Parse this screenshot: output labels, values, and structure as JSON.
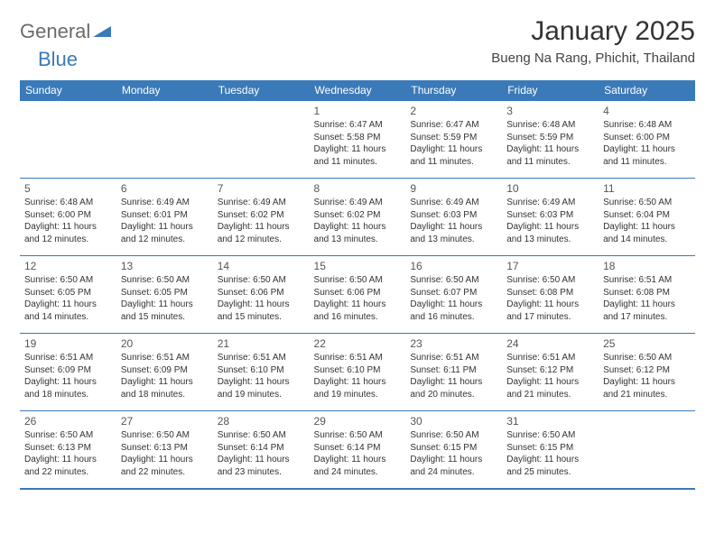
{
  "brand": {
    "general": "General",
    "blue": "Blue"
  },
  "title": "January 2025",
  "location": "Bueng Na Rang, Phichit, Thailand",
  "colors": {
    "accent": "#3a7ab8",
    "text": "#333333",
    "muted": "#6b6b6b",
    "bg": "#ffffff"
  },
  "weekdays": [
    "Sunday",
    "Monday",
    "Tuesday",
    "Wednesday",
    "Thursday",
    "Friday",
    "Saturday"
  ],
  "calendar": {
    "type": "table",
    "columns": 7,
    "rows": 5,
    "start_day_index": 3,
    "days": [
      {
        "n": "1",
        "sr": "Sunrise: 6:47 AM",
        "ss": "Sunset: 5:58 PM",
        "d1": "Daylight: 11 hours",
        "d2": "and 11 minutes."
      },
      {
        "n": "2",
        "sr": "Sunrise: 6:47 AM",
        "ss": "Sunset: 5:59 PM",
        "d1": "Daylight: 11 hours",
        "d2": "and 11 minutes."
      },
      {
        "n": "3",
        "sr": "Sunrise: 6:48 AM",
        "ss": "Sunset: 5:59 PM",
        "d1": "Daylight: 11 hours",
        "d2": "and 11 minutes."
      },
      {
        "n": "4",
        "sr": "Sunrise: 6:48 AM",
        "ss": "Sunset: 6:00 PM",
        "d1": "Daylight: 11 hours",
        "d2": "and 11 minutes."
      },
      {
        "n": "5",
        "sr": "Sunrise: 6:48 AM",
        "ss": "Sunset: 6:00 PM",
        "d1": "Daylight: 11 hours",
        "d2": "and 12 minutes."
      },
      {
        "n": "6",
        "sr": "Sunrise: 6:49 AM",
        "ss": "Sunset: 6:01 PM",
        "d1": "Daylight: 11 hours",
        "d2": "and 12 minutes."
      },
      {
        "n": "7",
        "sr": "Sunrise: 6:49 AM",
        "ss": "Sunset: 6:02 PM",
        "d1": "Daylight: 11 hours",
        "d2": "and 12 minutes."
      },
      {
        "n": "8",
        "sr": "Sunrise: 6:49 AM",
        "ss": "Sunset: 6:02 PM",
        "d1": "Daylight: 11 hours",
        "d2": "and 13 minutes."
      },
      {
        "n": "9",
        "sr": "Sunrise: 6:49 AM",
        "ss": "Sunset: 6:03 PM",
        "d1": "Daylight: 11 hours",
        "d2": "and 13 minutes."
      },
      {
        "n": "10",
        "sr": "Sunrise: 6:49 AM",
        "ss": "Sunset: 6:03 PM",
        "d1": "Daylight: 11 hours",
        "d2": "and 13 minutes."
      },
      {
        "n": "11",
        "sr": "Sunrise: 6:50 AM",
        "ss": "Sunset: 6:04 PM",
        "d1": "Daylight: 11 hours",
        "d2": "and 14 minutes."
      },
      {
        "n": "12",
        "sr": "Sunrise: 6:50 AM",
        "ss": "Sunset: 6:05 PM",
        "d1": "Daylight: 11 hours",
        "d2": "and 14 minutes."
      },
      {
        "n": "13",
        "sr": "Sunrise: 6:50 AM",
        "ss": "Sunset: 6:05 PM",
        "d1": "Daylight: 11 hours",
        "d2": "and 15 minutes."
      },
      {
        "n": "14",
        "sr": "Sunrise: 6:50 AM",
        "ss": "Sunset: 6:06 PM",
        "d1": "Daylight: 11 hours",
        "d2": "and 15 minutes."
      },
      {
        "n": "15",
        "sr": "Sunrise: 6:50 AM",
        "ss": "Sunset: 6:06 PM",
        "d1": "Daylight: 11 hours",
        "d2": "and 16 minutes."
      },
      {
        "n": "16",
        "sr": "Sunrise: 6:50 AM",
        "ss": "Sunset: 6:07 PM",
        "d1": "Daylight: 11 hours",
        "d2": "and 16 minutes."
      },
      {
        "n": "17",
        "sr": "Sunrise: 6:50 AM",
        "ss": "Sunset: 6:08 PM",
        "d1": "Daylight: 11 hours",
        "d2": "and 17 minutes."
      },
      {
        "n": "18",
        "sr": "Sunrise: 6:51 AM",
        "ss": "Sunset: 6:08 PM",
        "d1": "Daylight: 11 hours",
        "d2": "and 17 minutes."
      },
      {
        "n": "19",
        "sr": "Sunrise: 6:51 AM",
        "ss": "Sunset: 6:09 PM",
        "d1": "Daylight: 11 hours",
        "d2": "and 18 minutes."
      },
      {
        "n": "20",
        "sr": "Sunrise: 6:51 AM",
        "ss": "Sunset: 6:09 PM",
        "d1": "Daylight: 11 hours",
        "d2": "and 18 minutes."
      },
      {
        "n": "21",
        "sr": "Sunrise: 6:51 AM",
        "ss": "Sunset: 6:10 PM",
        "d1": "Daylight: 11 hours",
        "d2": "and 19 minutes."
      },
      {
        "n": "22",
        "sr": "Sunrise: 6:51 AM",
        "ss": "Sunset: 6:10 PM",
        "d1": "Daylight: 11 hours",
        "d2": "and 19 minutes."
      },
      {
        "n": "23",
        "sr": "Sunrise: 6:51 AM",
        "ss": "Sunset: 6:11 PM",
        "d1": "Daylight: 11 hours",
        "d2": "and 20 minutes."
      },
      {
        "n": "24",
        "sr": "Sunrise: 6:51 AM",
        "ss": "Sunset: 6:12 PM",
        "d1": "Daylight: 11 hours",
        "d2": "and 21 minutes."
      },
      {
        "n": "25",
        "sr": "Sunrise: 6:50 AM",
        "ss": "Sunset: 6:12 PM",
        "d1": "Daylight: 11 hours",
        "d2": "and 21 minutes."
      },
      {
        "n": "26",
        "sr": "Sunrise: 6:50 AM",
        "ss": "Sunset: 6:13 PM",
        "d1": "Daylight: 11 hours",
        "d2": "and 22 minutes."
      },
      {
        "n": "27",
        "sr": "Sunrise: 6:50 AM",
        "ss": "Sunset: 6:13 PM",
        "d1": "Daylight: 11 hours",
        "d2": "and 22 minutes."
      },
      {
        "n": "28",
        "sr": "Sunrise: 6:50 AM",
        "ss": "Sunset: 6:14 PM",
        "d1": "Daylight: 11 hours",
        "d2": "and 23 minutes."
      },
      {
        "n": "29",
        "sr": "Sunrise: 6:50 AM",
        "ss": "Sunset: 6:14 PM",
        "d1": "Daylight: 11 hours",
        "d2": "and 24 minutes."
      },
      {
        "n": "30",
        "sr": "Sunrise: 6:50 AM",
        "ss": "Sunset: 6:15 PM",
        "d1": "Daylight: 11 hours",
        "d2": "and 24 minutes."
      },
      {
        "n": "31",
        "sr": "Sunrise: 6:50 AM",
        "ss": "Sunset: 6:15 PM",
        "d1": "Daylight: 11 hours",
        "d2": "and 25 minutes."
      }
    ]
  }
}
